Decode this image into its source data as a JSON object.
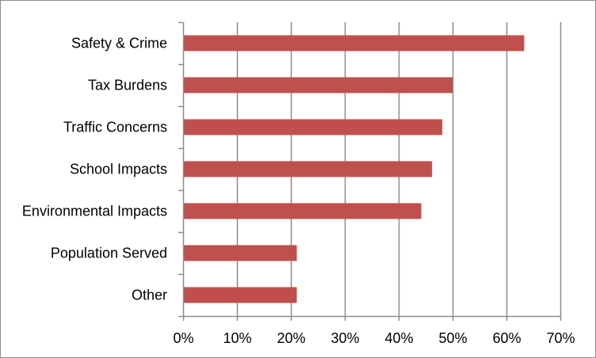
{
  "chart_data": {
    "type": "bar",
    "orientation": "horizontal",
    "title": "",
    "xlabel": "",
    "ylabel": "",
    "categories": [
      "Safety & Crime",
      "Tax Burdens",
      "Traffic Concerns",
      "School Impacts",
      "Environmental Impacts",
      "Population Served",
      "Other"
    ],
    "values": [
      63.3,
      50.0,
      48.1,
      46.2,
      44.2,
      21.1,
      21.1
    ],
    "value_unit": "%",
    "xlim": [
      0,
      70
    ],
    "x_ticks": [
      "0%",
      "10%",
      "20%",
      "30%",
      "40%",
      "50%",
      "60%",
      "70%"
    ],
    "x_tick_values": [
      0,
      10,
      20,
      30,
      40,
      50,
      60,
      70
    ],
    "grid": "vertical",
    "legend": "none",
    "colors": {
      "bar": "#c0504d",
      "grid": "#8c8c8c",
      "axis": "#8c8c8c",
      "border": "#8c8c8c"
    }
  }
}
